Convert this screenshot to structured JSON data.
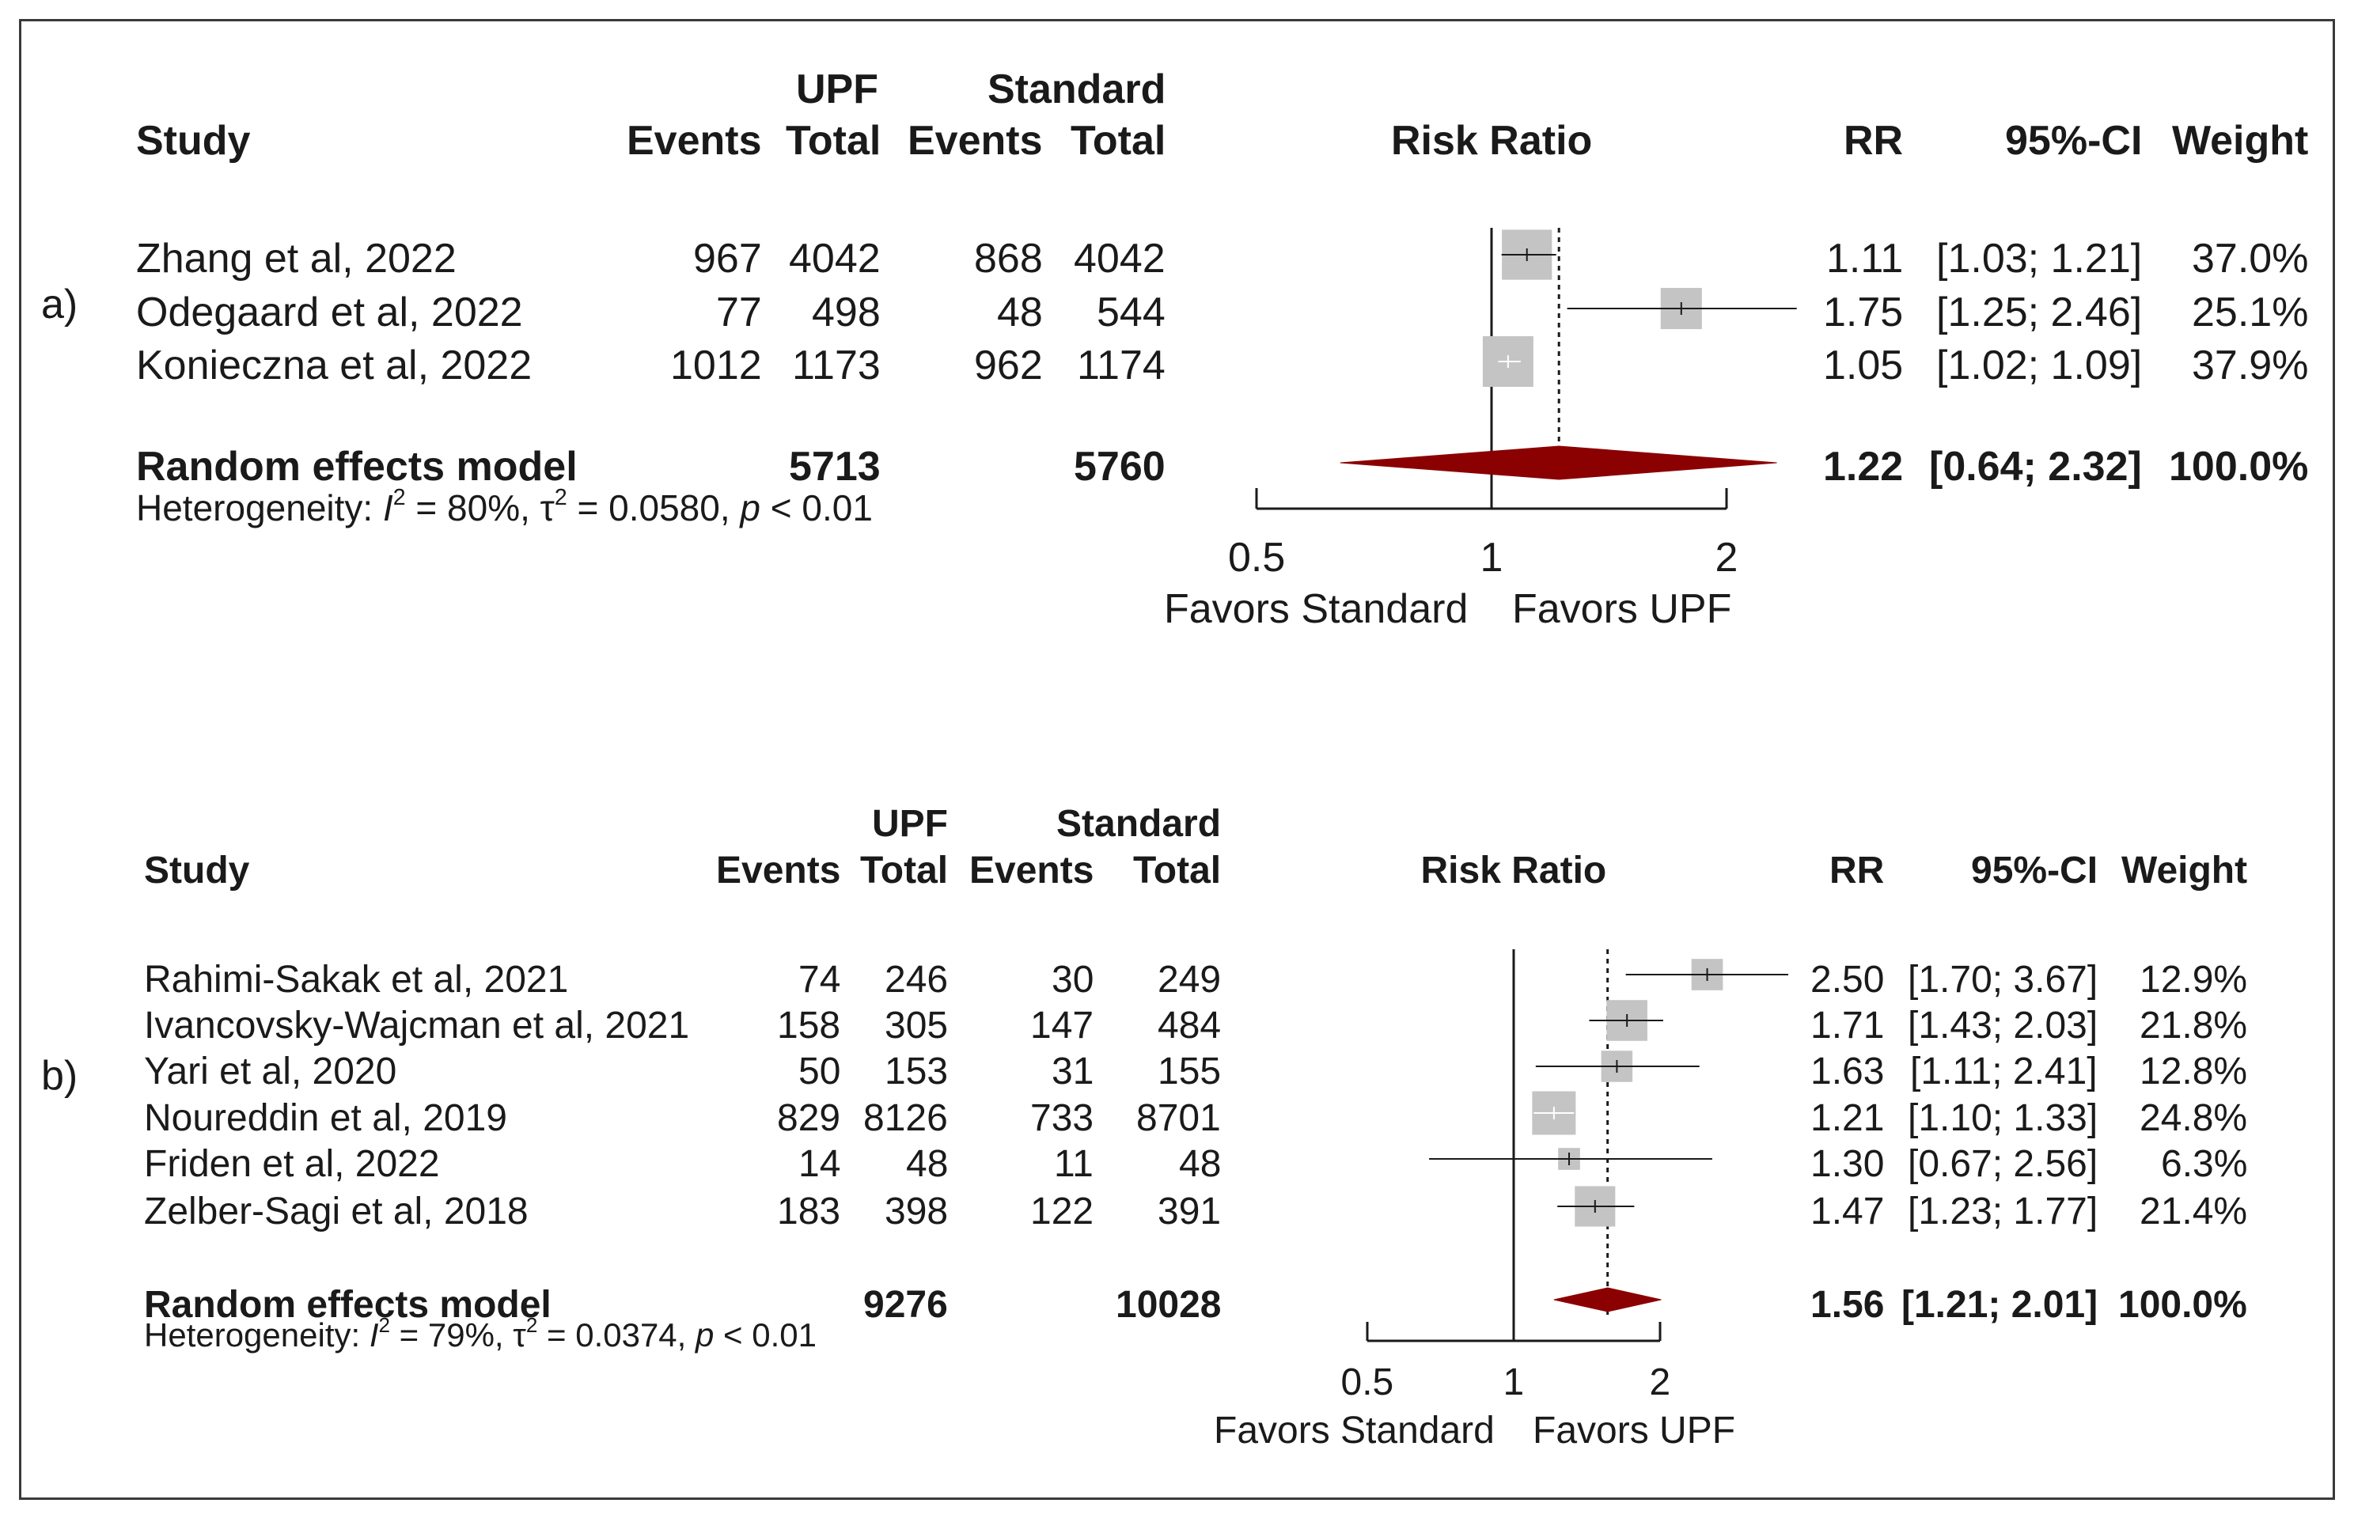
{
  "columns": {
    "study": "Study",
    "upf": "UPF",
    "standard": "Standard",
    "events": "Events",
    "total": "Total",
    "plot": "Risk Ratio",
    "rr": "RR",
    "ci": "95%-CI",
    "weight": "Weight"
  },
  "colors": {
    "box": "#c4c4c4",
    "diamond": "#8b0000",
    "line": "#1a1a1a",
    "frame": "#3a3a3a"
  },
  "chart_data": [
    {
      "type": "forest",
      "panel_label": "a)",
      "xscale": "log",
      "xticks": [
        0.5,
        1,
        2
      ],
      "xtick_labels": [
        "0.5",
        "1",
        "2"
      ],
      "xlabel_left": "Favors Standard",
      "xlabel_right": "Favors UPF",
      "studies": [
        {
          "study": "Zhang et al, 2022",
          "upf_events": "967",
          "upf_total": "4042",
          "std_events": "868",
          "std_total": "4042",
          "rr": 1.11,
          "lo": 1.03,
          "hi": 1.21,
          "rr_text": "1.11",
          "ci_text": "[1.03; 1.21]",
          "weight": 37.0,
          "weight_text": "37.0%"
        },
        {
          "study": "Odegaard et al, 2022",
          "upf_events": "77",
          "upf_total": "498",
          "std_events": "48",
          "std_total": "544",
          "rr": 1.75,
          "lo": 1.25,
          "hi": 2.46,
          "rr_text": "1.75",
          "ci_text": "[1.25; 2.46]",
          "weight": 25.1,
          "weight_text": "25.1%"
        },
        {
          "study": "Konieczna et al, 2022",
          "upf_events": "1012",
          "upf_total": "1173",
          "std_events": "962",
          "std_total": "1174",
          "rr": 1.05,
          "lo": 1.02,
          "hi": 1.09,
          "rr_text": "1.05",
          "ci_text": "[1.02; 1.09]",
          "weight": 37.9,
          "weight_text": "37.9%"
        }
      ],
      "pooled": {
        "label": "Random effects model",
        "upf_total": "5713",
        "std_total": "5760",
        "rr": 1.22,
        "lo": 0.64,
        "hi": 2.32,
        "rr_text": "1.22",
        "ci_text": "[0.64; 2.32]",
        "weight_text": "100.0%"
      },
      "heterogeneity": {
        "prefix": "Heterogeneity: ",
        "i2_symbol": "I",
        "i2_value": " = 80%, ",
        "tau_symbol": "τ",
        "tau_value": " = 0.0580, ",
        "p_symbol": "p",
        "p_value": " < 0.01"
      }
    },
    {
      "type": "forest",
      "panel_label": "b)",
      "xscale": "log",
      "xticks": [
        0.5,
        1,
        2
      ],
      "xtick_labels": [
        "0.5",
        "1",
        "2"
      ],
      "xlabel_left": "Favors Standard",
      "xlabel_right": "Favors UPF",
      "studies": [
        {
          "study": "Rahimi-Sakak et al, 2021",
          "upf_events": "74",
          "upf_total": "246",
          "std_events": "30",
          "std_total": "249",
          "rr": 2.5,
          "lo": 1.7,
          "hi": 3.67,
          "rr_text": "2.50",
          "ci_text": "[1.70; 3.67]",
          "weight": 12.9,
          "weight_text": "12.9%"
        },
        {
          "study": "Ivancovsky-Wajcman et al, 2021",
          "upf_events": "158",
          "upf_total": "305",
          "std_events": "147",
          "std_total": "484",
          "rr": 1.71,
          "lo": 1.43,
          "hi": 2.03,
          "rr_text": "1.71",
          "ci_text": "[1.43; 2.03]",
          "weight": 21.8,
          "weight_text": "21.8%"
        },
        {
          "study": "Yari et al, 2020",
          "upf_events": "50",
          "upf_total": "153",
          "std_events": "31",
          "std_total": "155",
          "rr": 1.63,
          "lo": 1.11,
          "hi": 2.41,
          "rr_text": "1.63",
          "ci_text": "[1.11; 2.41]",
          "weight": 12.8,
          "weight_text": "12.8%"
        },
        {
          "study": "Noureddin et al, 2019",
          "upf_events": "829",
          "upf_total": "8126",
          "std_events": "733",
          "std_total": "8701",
          "rr": 1.21,
          "lo": 1.1,
          "hi": 1.33,
          "rr_text": "1.21",
          "ci_text": "[1.10; 1.33]",
          "weight": 24.8,
          "weight_text": "24.8%"
        },
        {
          "study": "Friden et al, 2022",
          "upf_events": "14",
          "upf_total": "48",
          "std_events": "11",
          "std_total": "48",
          "rr": 1.3,
          "lo": 0.67,
          "hi": 2.56,
          "rr_text": "1.30",
          "ci_text": "[0.67; 2.56]",
          "weight": 6.3,
          "weight_text": "6.3%"
        },
        {
          "study": "Zelber-Sagi et al, 2018",
          "upf_events": "183",
          "upf_total": "398",
          "std_events": "122",
          "std_total": "391",
          "rr": 1.47,
          "lo": 1.23,
          "hi": 1.77,
          "rr_text": "1.47",
          "ci_text": "[1.23; 1.77]",
          "weight": 21.4,
          "weight_text": "21.4%"
        }
      ],
      "pooled": {
        "label": "Random effects model",
        "upf_total": "9276",
        "std_total": "10028",
        "rr": 1.56,
        "lo": 1.21,
        "hi": 2.01,
        "rr_text": "1.56",
        "ci_text": "[1.21; 2.01]",
        "weight_text": "100.0%"
      },
      "heterogeneity": {
        "prefix": "Heterogeneity: ",
        "i2_symbol": "I",
        "i2_value": " = 79%, ",
        "tau_symbol": "τ",
        "tau_value": " = 0.0374, ",
        "p_symbol": "p",
        "p_value": " < 0.01"
      }
    }
  ]
}
